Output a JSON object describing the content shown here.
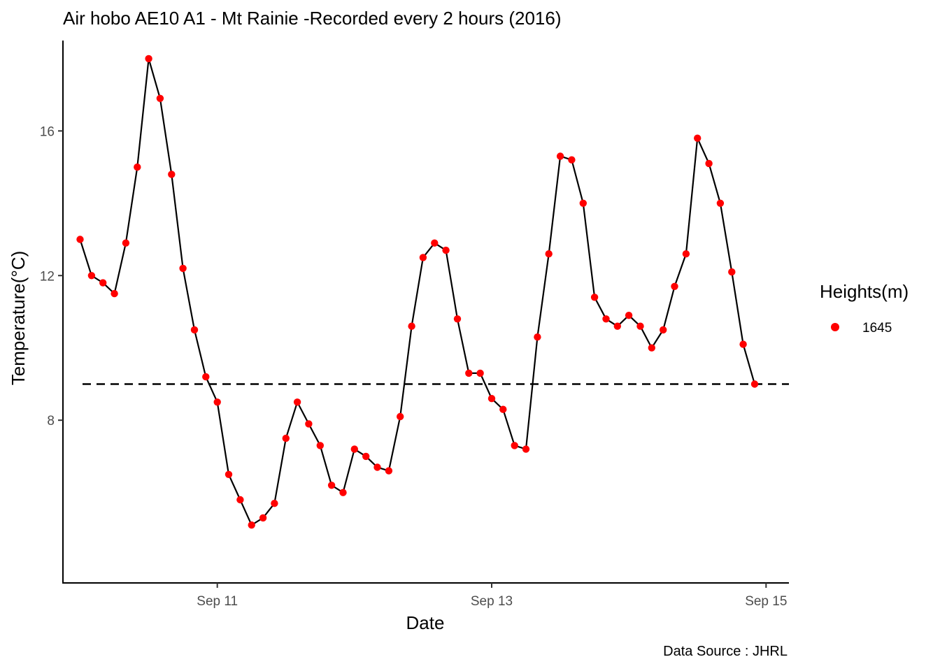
{
  "chart_data": {
    "type": "line",
    "title": "Air hobo AE10 A1 -  Mt Rainie -Recorded every 2 hours (2016)",
    "xlabel": "Date",
    "ylabel": "Temperature(°C)",
    "caption": "Data Source : JHRL",
    "x_ticks": [
      {
        "label": "Sep 11",
        "value": "2016-09-11"
      },
      {
        "label": "Sep 13",
        "value": "2016-09-13"
      },
      {
        "label": "Sep 15",
        "value": "2016-09-15"
      }
    ],
    "y_ticks": [
      8,
      12,
      16
    ],
    "ylim": [
      3.5,
      18.5
    ],
    "xlim": [
      "2016-09-09T21:00",
      "2016-09-15T04:00"
    ],
    "grid": false,
    "legend": {
      "title": "Heights(m)",
      "position": "right",
      "entries": [
        {
          "name": "1645",
          "color": "#ff0000"
        }
      ]
    },
    "reference_line": {
      "y": 9.0,
      "style": "dashed",
      "color": "#000000"
    },
    "series": [
      {
        "name": "1645",
        "point_color": "#ff0000",
        "line_color": "#000000",
        "x": [
          "2016-09-10T00:00",
          "2016-09-10T02:00",
          "2016-09-10T04:00",
          "2016-09-10T06:00",
          "2016-09-10T08:00",
          "2016-09-10T10:00",
          "2016-09-10T12:00",
          "2016-09-10T14:00",
          "2016-09-10T16:00",
          "2016-09-10T18:00",
          "2016-09-10T20:00",
          "2016-09-10T22:00",
          "2016-09-11T00:00",
          "2016-09-11T02:00",
          "2016-09-11T04:00",
          "2016-09-11T06:00",
          "2016-09-11T08:00",
          "2016-09-11T10:00",
          "2016-09-11T12:00",
          "2016-09-11T14:00",
          "2016-09-11T16:00",
          "2016-09-11T18:00",
          "2016-09-11T20:00",
          "2016-09-11T22:00",
          "2016-09-12T00:00",
          "2016-09-12T02:00",
          "2016-09-12T04:00",
          "2016-09-12T06:00",
          "2016-09-12T08:00",
          "2016-09-12T10:00",
          "2016-09-12T12:00",
          "2016-09-12T14:00",
          "2016-09-12T16:00",
          "2016-09-12T18:00",
          "2016-09-12T20:00",
          "2016-09-12T22:00",
          "2016-09-13T00:00",
          "2016-09-13T02:00",
          "2016-09-13T04:00",
          "2016-09-13T06:00",
          "2016-09-13T08:00",
          "2016-09-13T10:00",
          "2016-09-13T12:00",
          "2016-09-13T14:00",
          "2016-09-13T16:00",
          "2016-09-13T18:00",
          "2016-09-13T20:00",
          "2016-09-13T22:00",
          "2016-09-14T00:00",
          "2016-09-14T02:00",
          "2016-09-14T04:00",
          "2016-09-14T06:00",
          "2016-09-14T08:00",
          "2016-09-14T10:00",
          "2016-09-14T12:00",
          "2016-09-14T14:00",
          "2016-09-14T16:00",
          "2016-09-14T18:00",
          "2016-09-14T20:00",
          "2016-09-14T22:00"
        ],
        "y": [
          13.0,
          12.0,
          11.8,
          11.5,
          12.9,
          15.0,
          18.0,
          16.9,
          14.8,
          12.2,
          10.5,
          9.2,
          8.5,
          6.5,
          5.8,
          5.1,
          5.3,
          5.7,
          7.5,
          8.5,
          7.9,
          7.3,
          6.2,
          6.0,
          7.2,
          7.0,
          6.7,
          6.6,
          8.1,
          10.6,
          12.5,
          12.9,
          12.7,
          10.8,
          9.3,
          9.3,
          8.6,
          8.3,
          7.3,
          7.2,
          10.3,
          12.6,
          15.3,
          15.2,
          14.0,
          11.4,
          10.8,
          10.6,
          10.9,
          10.6,
          10.0,
          10.5,
          11.7,
          12.6,
          15.8,
          15.1,
          14.0,
          12.1,
          10.1,
          9.0
        ]
      }
    ]
  }
}
